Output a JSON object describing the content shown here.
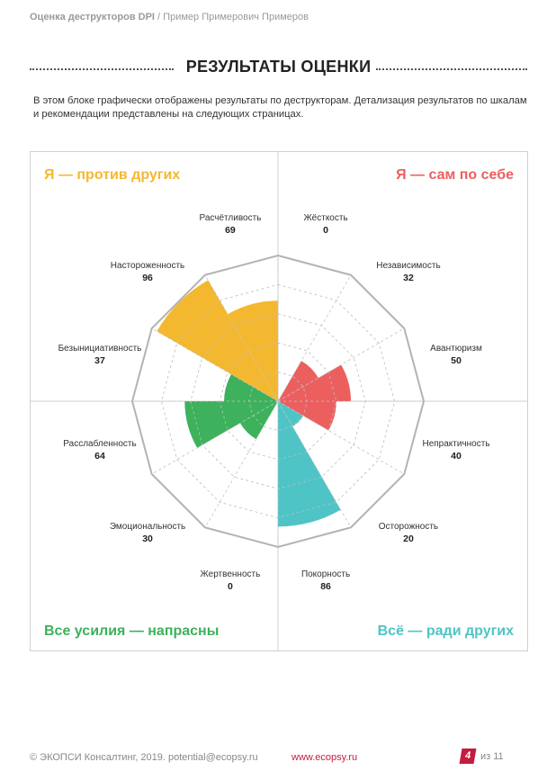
{
  "header": {
    "doc_title": "Оценка деструкторов DPI",
    "separator": "/",
    "person": "Пример Примерович Примеров"
  },
  "section_title": "РЕЗУЛЬТАТЫ ОЦЕНКИ",
  "intro": "В этом блоке графически отображены результаты по деструкторам. Детализация результатов по шкалам и рекомендации представлены на следующих страницах.",
  "quadrants": [
    {
      "label": "Я — против других",
      "color": "#f4b830"
    },
    {
      "label": "Я — сам по себе",
      "color": "#ec5f5f"
    },
    {
      "label": "Всё — ради других",
      "color": "#4fc4c6"
    },
    {
      "label": "Все усилия — напрасны",
      "color": "#3db15c"
    }
  ],
  "chart_data": {
    "type": "polar-area",
    "title": "",
    "rlim": [
      0,
      100
    ],
    "rings": [
      20,
      40,
      60,
      80,
      100
    ],
    "categories": [
      "Жёсткость",
      "Независимость",
      "Авантюризм",
      "Непрактичность",
      "Осторожность",
      "Покорность",
      "Жертвенность",
      "Эмоциональность",
      "Расслабленность",
      "Безынициативность",
      "Настороженность",
      "Расчётливость"
    ],
    "values": [
      0,
      32,
      50,
      40,
      20,
      86,
      0,
      30,
      64,
      37,
      96,
      69
    ],
    "sector_quadrant": [
      1,
      1,
      1,
      1,
      2,
      2,
      2,
      3,
      3,
      3,
      0,
      0
    ]
  },
  "footer": {
    "copyright": "© ЭКОПСИ Консалтинг, 2019. potential@ecopsy.ru",
    "website": "www.ecopsy.ru",
    "page": "4",
    "total": "из 11"
  }
}
